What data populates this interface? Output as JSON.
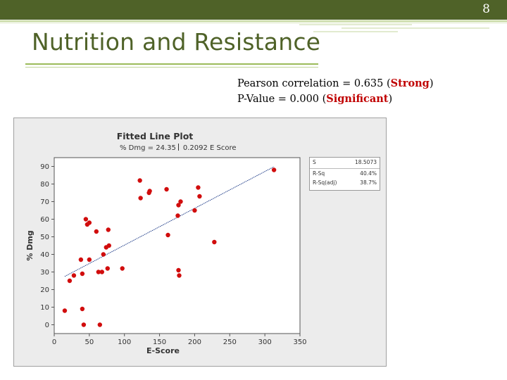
{
  "slide": {
    "number": "8",
    "title": "Nutrition and Resistance"
  },
  "stats": {
    "pearson_prefix": "Pearson correlation = 0.635 (",
    "pearson_strength": "Strong",
    "pearson_suffix": ")",
    "pvalue_prefix": "P-Value = 0.000 (",
    "pvalue_significance": "Significant",
    "pvalue_suffix": ")"
  },
  "colors": {
    "theme_dark": "#4f6228",
    "theme_light": "#9bbb59",
    "highlight": "#c00000",
    "points": "#d10d0d",
    "fit_line": "#1f3c88"
  },
  "chart_data": {
    "type": "scatter",
    "title": "Fitted Line Plot",
    "subtitle_left": "% Dmg = 24.35",
    "subtitle_right": "0.2092 E Score",
    "xlabel": "E-Score",
    "ylabel": "% Dmg",
    "xlim": [
      0,
      350
    ],
    "ylim": [
      -5,
      95
    ],
    "xticks": [
      0,
      50,
      100,
      150,
      200,
      250,
      300,
      350
    ],
    "yticks": [
      0,
      10,
      20,
      30,
      40,
      50,
      60,
      70,
      80,
      90
    ],
    "fit": {
      "intercept": 24.35,
      "slope": 0.2092,
      "x_range": [
        15,
        313
      ]
    },
    "points": [
      {
        "x": 15,
        "y": 8
      },
      {
        "x": 22,
        "y": 25
      },
      {
        "x": 28,
        "y": 28
      },
      {
        "x": 38,
        "y": 37
      },
      {
        "x": 40,
        "y": 29
      },
      {
        "x": 40,
        "y": 9
      },
      {
        "x": 42,
        "y": 0
      },
      {
        "x": 45,
        "y": 60
      },
      {
        "x": 47,
        "y": 57
      },
      {
        "x": 50,
        "y": 58
      },
      {
        "x": 50,
        "y": 37
      },
      {
        "x": 60,
        "y": 53
      },
      {
        "x": 63,
        "y": 30
      },
      {
        "x": 65,
        "y": 0
      },
      {
        "x": 68,
        "y": 30
      },
      {
        "x": 70,
        "y": 40
      },
      {
        "x": 74,
        "y": 44
      },
      {
        "x": 76,
        "y": 32
      },
      {
        "x": 77,
        "y": 54
      },
      {
        "x": 78,
        "y": 45
      },
      {
        "x": 97,
        "y": 32
      },
      {
        "x": 122,
        "y": 82
      },
      {
        "x": 123,
        "y": 72
      },
      {
        "x": 135,
        "y": 75
      },
      {
        "x": 136,
        "y": 76
      },
      {
        "x": 160,
        "y": 77
      },
      {
        "x": 162,
        "y": 51
      },
      {
        "x": 176,
        "y": 62
      },
      {
        "x": 177,
        "y": 68
      },
      {
        "x": 177,
        "y": 31
      },
      {
        "x": 178,
        "y": 28
      },
      {
        "x": 180,
        "y": 70
      },
      {
        "x": 200,
        "y": 65
      },
      {
        "x": 205,
        "y": 78
      },
      {
        "x": 207,
        "y": 73
      },
      {
        "x": 228,
        "y": 47
      },
      {
        "x": 313,
        "y": 88
      }
    ],
    "stats_table": [
      {
        "label": "S",
        "value": "18.5073"
      },
      {
        "label": "R-Sq",
        "value": "40.4%"
      },
      {
        "label": "R-Sq(adj)",
        "value": "38.7%"
      }
    ]
  }
}
